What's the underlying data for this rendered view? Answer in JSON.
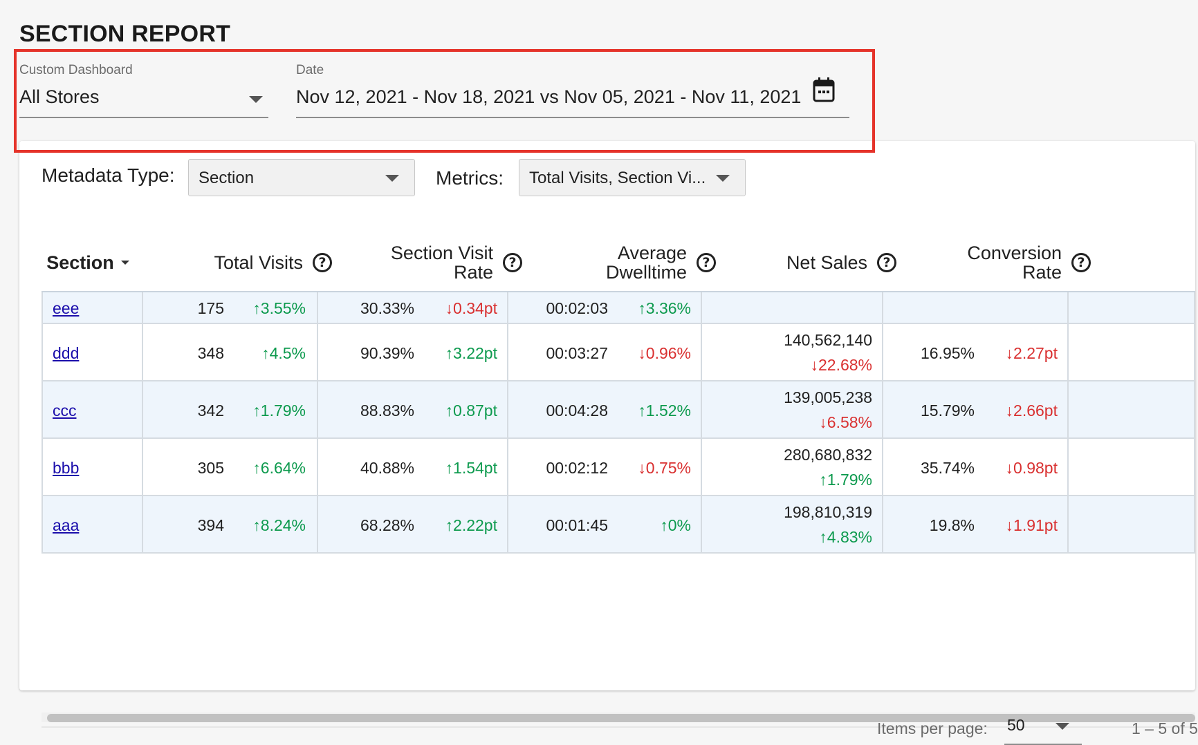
{
  "page": {
    "title": "SECTION REPORT"
  },
  "filters": {
    "dashboard_label": "Custom Dashboard",
    "dashboard_value": "All Stores",
    "date_label": "Date",
    "date_value": "Nov 12, 2021 - Nov 18, 2021 vs Nov 05, 2021 - Nov 11, 2021",
    "calendar_icon": "calendar-icon"
  },
  "controls": {
    "metadata_label": "Metadata Type:",
    "metadata_value": "Section",
    "metrics_label": "Metrics:",
    "metrics_value": "Total Visits, Section Vi..."
  },
  "table": {
    "columns": {
      "section": "Section",
      "total_visits": "Total Visits",
      "section_visit_rate_1": "Section Visit",
      "section_visit_rate_2": "Rate",
      "avg_dwell_1": "Average",
      "avg_dwell_2": "Dwelltime",
      "net_sales": "Net Sales",
      "conversion_1": "Conversion",
      "conversion_2": "Rate"
    },
    "rows": [
      {
        "section": "eee",
        "visits": "175",
        "visits_change": "3.55%",
        "visits_dir": "up",
        "rate": "30.33%",
        "rate_change": "0.34pt",
        "rate_dir": "down",
        "dwell": "00:02:03",
        "dwell_change": "3.36%",
        "dwell_dir": "up",
        "sales": "",
        "sales_change": "",
        "sales_dir": "",
        "conv": "",
        "conv_change": "",
        "conv_dir": ""
      },
      {
        "section": "ddd",
        "visits": "348",
        "visits_change": "4.5%",
        "visits_dir": "up",
        "rate": "90.39%",
        "rate_change": "3.22pt",
        "rate_dir": "up",
        "dwell": "00:03:27",
        "dwell_change": "0.96%",
        "dwell_dir": "down",
        "sales": "140,562,140",
        "sales_change": "22.68%",
        "sales_dir": "down",
        "conv": "16.95%",
        "conv_change": "2.27pt",
        "conv_dir": "down"
      },
      {
        "section": "ccc",
        "visits": "342",
        "visits_change": "1.79%",
        "visits_dir": "up",
        "rate": "88.83%",
        "rate_change": "0.87pt",
        "rate_dir": "up",
        "dwell": "00:04:28",
        "dwell_change": "1.52%",
        "dwell_dir": "up",
        "sales": "139,005,238",
        "sales_change": "6.58%",
        "sales_dir": "down",
        "conv": "15.79%",
        "conv_change": "2.66pt",
        "conv_dir": "down"
      },
      {
        "section": "bbb",
        "visits": "305",
        "visits_change": "6.64%",
        "visits_dir": "up",
        "rate": "40.88%",
        "rate_change": "1.54pt",
        "rate_dir": "up",
        "dwell": "00:02:12",
        "dwell_change": "0.75%",
        "dwell_dir": "down",
        "sales": "280,680,832",
        "sales_change": "1.79%",
        "sales_dir": "up",
        "conv": "35.74%",
        "conv_change": "0.98pt",
        "conv_dir": "down"
      },
      {
        "section": "aaa",
        "visits": "394",
        "visits_change": "8.24%",
        "visits_dir": "up",
        "rate": "68.28%",
        "rate_change": "2.22pt",
        "rate_dir": "up",
        "dwell": "00:01:45",
        "dwell_change": "0%",
        "dwell_dir": "up",
        "sales": "198,810,319",
        "sales_change": "4.83%",
        "sales_dir": "up",
        "conv": "19.8%",
        "conv_change": "1.91pt",
        "conv_dir": "down"
      }
    ]
  },
  "paginator": {
    "items_per_page_label": "Items per page:",
    "items_per_page_value": "50",
    "range_label": "1 – 5 of 5"
  },
  "colors": {
    "up": "#0d9a4e",
    "down": "#d93030",
    "highlight": "#e5332a",
    "link": "#1a0dab"
  },
  "arrows": {
    "up": "↑",
    "down": "↓"
  }
}
